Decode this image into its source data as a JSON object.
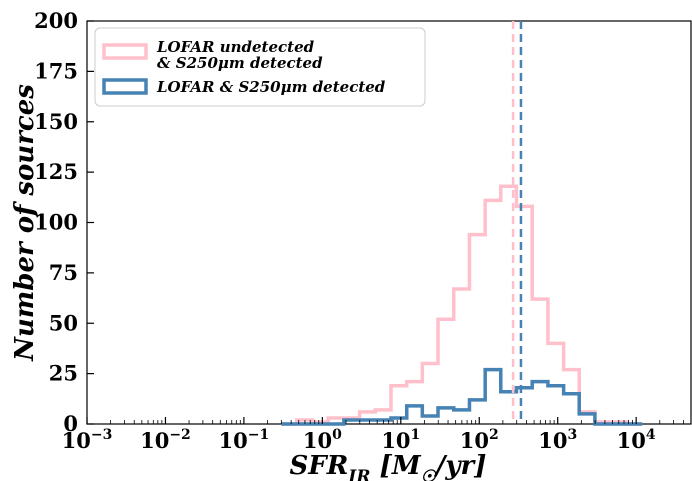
{
  "chart_data": {
    "type": "histogram",
    "xscale": "log",
    "xlim": [
      0.001,
      50000
    ],
    "ylim": [
      0,
      200
    ],
    "xlabel_main": "SFR",
    "xlabel_sub": "IR",
    "xlabel_unit": " [M",
    "xlabel_unit_sub": "☉",
    "xlabel_unit_end": "/yr]",
    "ylabel": "Number of sources",
    "xticks": [
      {
        "base": "10",
        "exp": "−3",
        "value": 0.001
      },
      {
        "base": "10",
        "exp": "−2",
        "value": 0.01
      },
      {
        "base": "10",
        "exp": "−1",
        "value": 0.1
      },
      {
        "base": "10",
        "exp": "0",
        "value": 1
      },
      {
        "base": "10",
        "exp": "1",
        "value": 10
      },
      {
        "base": "10",
        "exp": "2",
        "value": 100
      },
      {
        "base": "10",
        "exp": "3",
        "value": 1000
      },
      {
        "base": "10",
        "exp": "4",
        "value": 10000
      }
    ],
    "yticks": [
      "0",
      "25",
      "50",
      "75",
      "100",
      "125",
      "150",
      "175",
      "200"
    ],
    "bin_edges": [
      0.3,
      0.47,
      0.75,
      1.19,
      1.88,
      2.98,
      4.73,
      7.5,
      11.9,
      18.8,
      29.8,
      47.3,
      75,
      119,
      188,
      298,
      473,
      750,
      1190,
      1880,
      2980,
      4730,
      7500,
      11900
    ],
    "series": [
      {
        "name": "LOFAR undetected & S250μm detected",
        "color": "#ffc0cb",
        "counts": [
          0,
          2,
          1,
          3,
          3,
          6,
          7,
          19,
          21,
          30,
          52,
          67,
          94,
          111,
          118,
          108,
          62,
          40,
          27,
          6,
          1,
          1,
          0
        ]
      },
      {
        "name": "LOFAR & S250μm detected",
        "color": "#4682b4",
        "counts": [
          0,
          0,
          0,
          0,
          2,
          2,
          2,
          3,
          9,
          4,
          8,
          7,
          12,
          27,
          16,
          18,
          21,
          19,
          15,
          5,
          0,
          0,
          0
        ]
      }
    ],
    "vlines": [
      {
        "x": 270,
        "color": "#ffc0cb",
        "style": "dashed"
      },
      {
        "x": 340,
        "color": "#4682b4",
        "style": "dashed"
      }
    ],
    "legend": {
      "placement": "top-left",
      "entries": [
        {
          "line1": "LOFAR undetected",
          "line2": "& S250μm detected",
          "color": "#ffc0cb"
        },
        {
          "line1": "LOFAR & S250μm detected",
          "line2": "",
          "color": "#4682b4"
        }
      ]
    },
    "grid": false
  }
}
